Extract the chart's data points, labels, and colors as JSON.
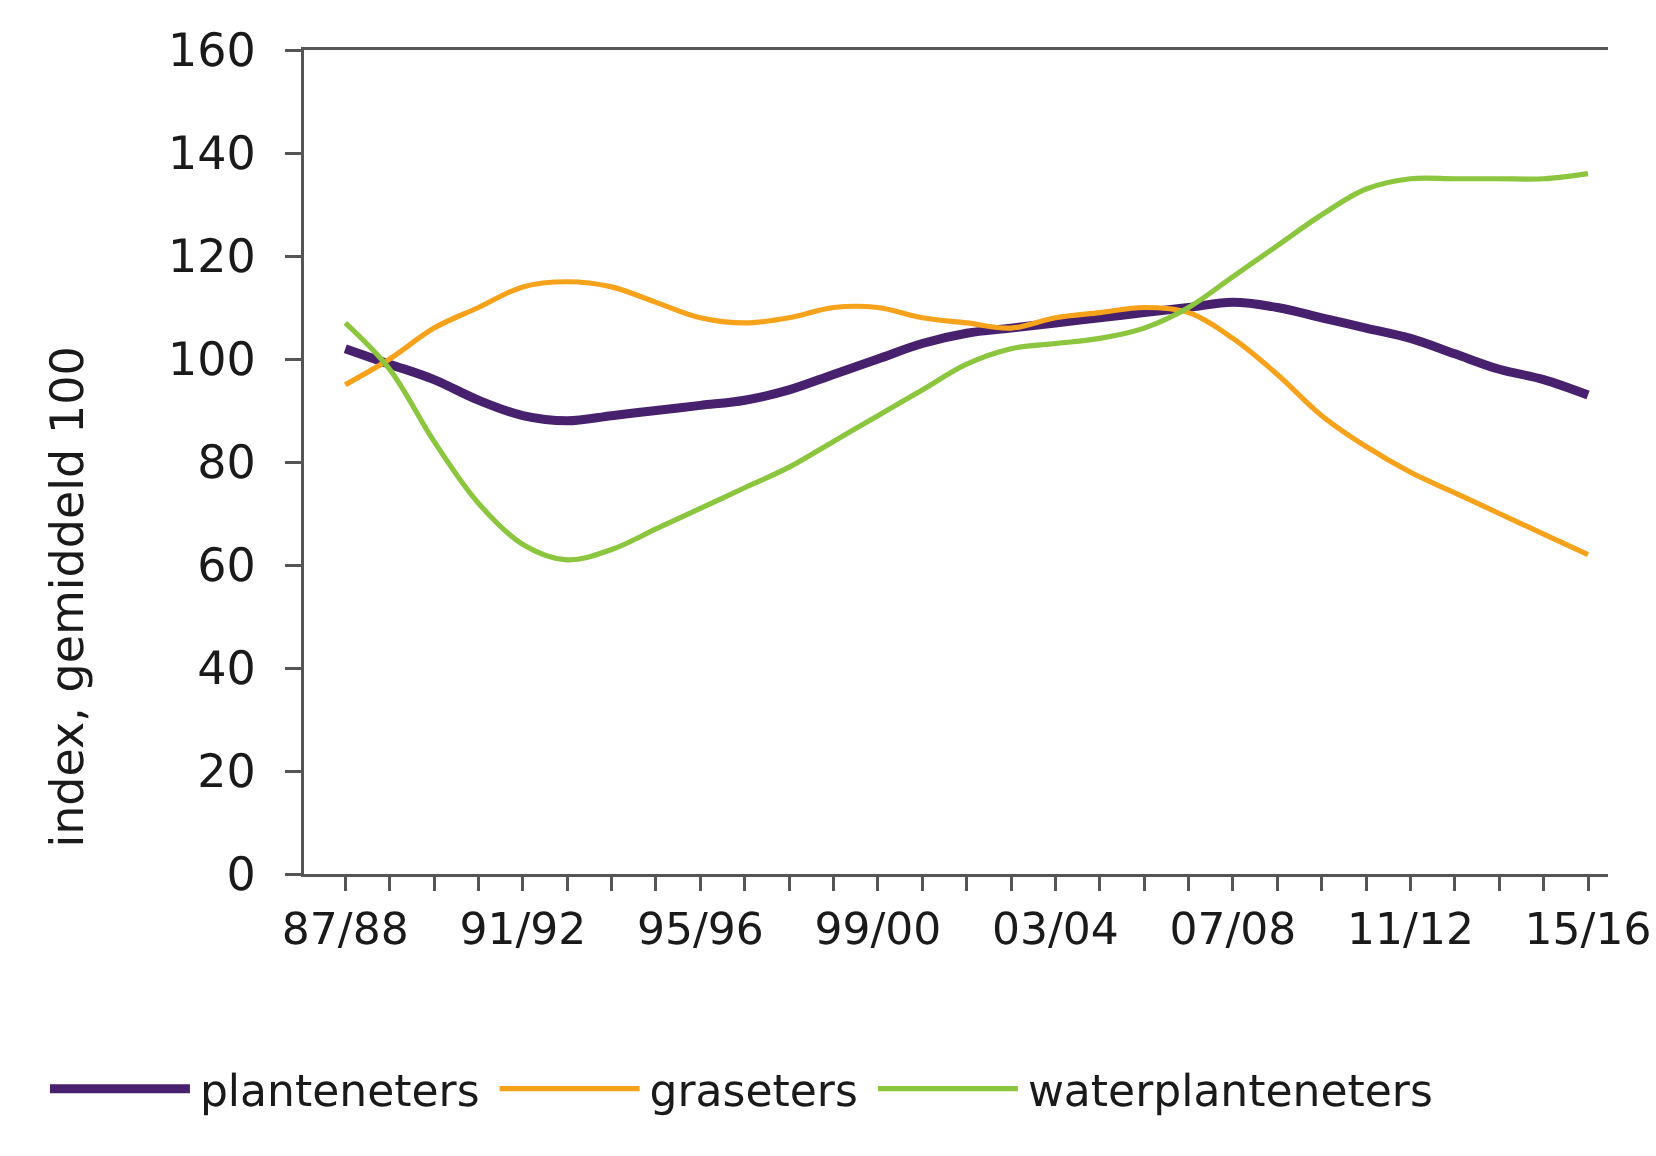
{
  "chart_data": {
    "type": "line",
    "ylabel": "index, gemiddeld 100",
    "categories": [
      "87/88",
      null,
      null,
      null,
      "91/92",
      null,
      null,
      null,
      "95/96",
      null,
      null,
      null,
      "99/00",
      null,
      null,
      null,
      "03/04",
      null,
      null,
      null,
      "07/08",
      null,
      null,
      null,
      "11/12",
      null,
      null,
      null,
      "15/16"
    ],
    "series": [
      {
        "name": "planteneters",
        "color": "#47206e",
        "values": [
          102,
          99,
          96,
          92,
          89,
          88,
          89,
          90,
          91,
          92,
          94,
          97,
          100,
          103,
          105,
          106,
          107,
          108,
          109,
          110,
          111,
          110,
          108,
          106,
          104,
          101,
          98,
          96,
          93
        ]
      },
      {
        "name": "graseters",
        "color": "#f7a21b",
        "values": [
          95,
          100,
          106,
          110,
          114,
          115,
          114,
          111,
          108,
          107,
          108,
          110,
          110,
          108,
          107,
          106,
          108,
          109,
          110,
          109,
          104,
          97,
          89,
          83,
          78,
          74,
          70,
          66,
          62
        ]
      },
      {
        "name": "waterplanteneters",
        "color": "#8cc63e",
        "values": [
          107,
          98,
          84,
          72,
          64,
          61,
          63,
          67,
          71,
          75,
          79,
          84,
          89,
          94,
          99,
          102,
          103,
          104,
          106,
          110,
          116,
          122,
          128,
          133,
          135,
          135,
          135,
          135,
          136
        ]
      }
    ],
    "ylim": [
      0,
      160
    ],
    "yticks": [
      0,
      20,
      40,
      60,
      80,
      100,
      120,
      140,
      160
    ],
    "grid": false,
    "legend": "bottom",
    "marker": "none",
    "line_style": "solid"
  }
}
